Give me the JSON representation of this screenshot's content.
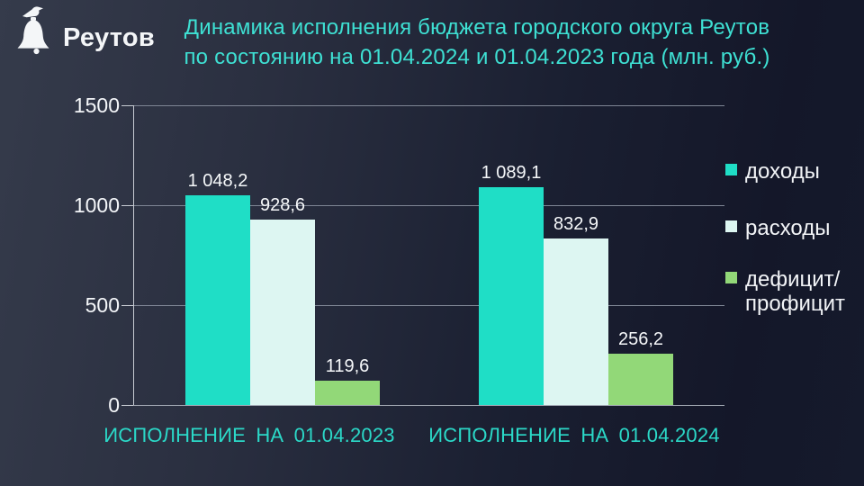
{
  "logo": {
    "brand": "Реутов"
  },
  "title": {
    "line1": "Динамика исполнения бюджета городского округа Реутов",
    "line2": "по состоянию на 01.04.2024 и 01.04.2023 года (млн. руб.)"
  },
  "colors": {
    "background_left": "#353b4b",
    "background_right": "#151a2c",
    "title_text": "#3ee0d3",
    "category_text": "#2bd9c8",
    "axis_text": "#f4f6f9",
    "incomes": "#1fdec6",
    "expenses": "#ddf6f2",
    "deficit": "#92d878"
  },
  "chart_data": {
    "type": "bar",
    "title": "Динамика исполнения бюджета городского округа Реутов по состоянию на 01.04.2024 и 01.04.2023 года (млн. руб.)",
    "categories": [
      "ИСПОЛНЕНИЕ НА 01.04.2023",
      "ИСПОЛНЕНИЕ НА 01.04.2024"
    ],
    "series": [
      {
        "id": "incomes",
        "name": "доходы",
        "color": "#1fdec6",
        "values": [
          1048.2,
          1089.1
        ],
        "labels": [
          "1 048,2",
          "1 089,1"
        ]
      },
      {
        "id": "expenses",
        "name": "расходы",
        "color": "#ddf6f2",
        "values": [
          928.6,
          832.9
        ],
        "labels": [
          "928,6",
          "832,9"
        ]
      },
      {
        "id": "deficit",
        "name": "дефицит/профицит",
        "color": "#92d878",
        "values": [
          119.6,
          256.2
        ],
        "labels": [
          "119,6",
          "256,2"
        ]
      }
    ],
    "xlabel": "",
    "ylabel": "",
    "ylim": [
      0,
      1500
    ],
    "yticks": [
      0,
      500,
      1000,
      1500
    ],
    "grid": true,
    "legend_position": "right",
    "unit": "млн. руб."
  },
  "legend": {
    "items": [
      {
        "id": "incomes",
        "color": "#1fdec6",
        "lines": [
          "доходы"
        ]
      },
      {
        "id": "expenses",
        "color": "#ddf6f2",
        "lines": [
          "расходы"
        ]
      },
      {
        "id": "deficit",
        "color": "#92d878",
        "lines": [
          "дефицит/",
          "профицит"
        ]
      }
    ]
  }
}
